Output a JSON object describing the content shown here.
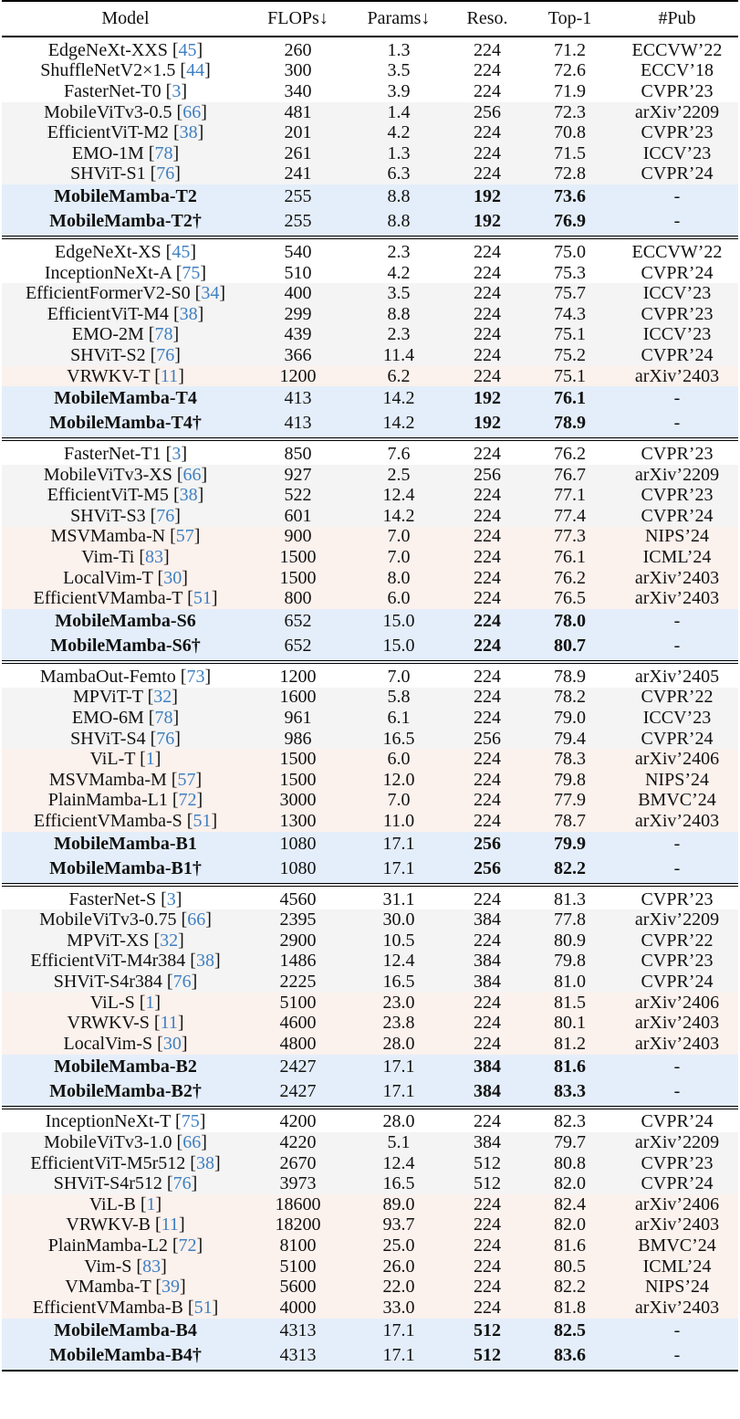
{
  "colors": {
    "cnn": "#ffffff",
    "vit": "#f4f4f4",
    "ssm": "#fbf1ed",
    "mobilemamba": "#e4eefa",
    "citation": "#3f7fc1"
  },
  "headers": [
    "Model",
    "FLOPs↓",
    "Params↓",
    "Reso.",
    "Top-1",
    "#Pub"
  ],
  "groups": [
    [
      [
        "cnn",
        "EdgeNeXt-XXS",
        "45",
        "260",
        "1.3",
        "224",
        "71.2",
        "ECCVW’22"
      ],
      [
        "cnn",
        "ShuffleNetV2×1.5",
        "44",
        "300",
        "3.5",
        "224",
        "72.6",
        "ECCV’18"
      ],
      [
        "cnn",
        "FasterNet-T0",
        "3",
        "340",
        "3.9",
        "224",
        "71.9",
        "CVPR’23"
      ],
      [
        "vit",
        "MobileViTv3-0.5",
        "66",
        "481",
        "1.4",
        "256",
        "72.3",
        "arXiv’2209"
      ],
      [
        "vit",
        "EfficientViT-M2",
        "38",
        "201",
        "4.2",
        "224",
        "70.8",
        "CVPR’23"
      ],
      [
        "vit",
        "EMO-1M",
        "78",
        "261",
        "1.3",
        "224",
        "71.5",
        "ICCV’23"
      ],
      [
        "vit",
        "SHViT-S1",
        "76",
        "241",
        "6.3",
        "224",
        "72.8",
        "CVPR’24"
      ],
      [
        "mm",
        "MobileMamba-T2",
        "",
        "255",
        "8.8",
        "192",
        "73.6",
        "-"
      ],
      [
        "mm",
        "MobileMamba-T2†",
        "",
        "255",
        "8.8",
        "192",
        "76.9",
        "-"
      ]
    ],
    [
      [
        "cnn",
        "EdgeNeXt-XS",
        "45",
        "540",
        "2.3",
        "224",
        "75.0",
        "ECCVW’22"
      ],
      [
        "cnn",
        "InceptionNeXt-A",
        "75",
        "510",
        "4.2",
        "224",
        "75.3",
        "CVPR’24"
      ],
      [
        "vit",
        "EfficientFormerV2-S0",
        "34",
        "400",
        "3.5",
        "224",
        "75.7",
        "ICCV’23"
      ],
      [
        "vit",
        "EfficientViT-M4",
        "38",
        "299",
        "8.8",
        "224",
        "74.3",
        "CVPR’23"
      ],
      [
        "vit",
        "EMO-2M",
        "78",
        "439",
        "2.3",
        "224",
        "75.1",
        "ICCV’23"
      ],
      [
        "vit",
        "SHViT-S2",
        "76",
        "366",
        "11.4",
        "224",
        "75.2",
        "CVPR’24"
      ],
      [
        "ssm",
        "VRWKV-T",
        "11",
        "1200",
        "6.2",
        "224",
        "75.1",
        "arXiv’2403"
      ],
      [
        "mm",
        "MobileMamba-T4",
        "",
        "413",
        "14.2",
        "192",
        "76.1",
        "-"
      ],
      [
        "mm",
        "MobileMamba-T4†",
        "",
        "413",
        "14.2",
        "192",
        "78.9",
        "-"
      ]
    ],
    [
      [
        "cnn",
        "FasterNet-T1",
        "3",
        "850",
        "7.6",
        "224",
        "76.2",
        "CVPR’23"
      ],
      [
        "vit",
        "MobileViTv3-XS",
        "66",
        "927",
        "2.5",
        "256",
        "76.7",
        "arXiv’2209"
      ],
      [
        "vit",
        "EfficientViT-M5",
        "38",
        "522",
        "12.4",
        "224",
        "77.1",
        "CVPR’23"
      ],
      [
        "vit",
        "SHViT-S3",
        "76",
        "601",
        "14.2",
        "224",
        "77.4",
        "CVPR’24"
      ],
      [
        "ssm",
        "MSVMamba-N",
        "57",
        "900",
        "7.0",
        "224",
        "77.3",
        "NIPS’24"
      ],
      [
        "ssm",
        "Vim-Ti",
        "83",
        "1500",
        "7.0",
        "224",
        "76.1",
        "ICML’24"
      ],
      [
        "ssm",
        "LocalVim-T",
        "30",
        "1500",
        "8.0",
        "224",
        "76.2",
        "arXiv’2403"
      ],
      [
        "ssm",
        "EfficientVMamba-T",
        "51",
        "800",
        "6.0",
        "224",
        "76.5",
        "arXiv’2403"
      ],
      [
        "mm",
        "MobileMamba-S6",
        "",
        "652",
        "15.0",
        "224",
        "78.0",
        "-"
      ],
      [
        "mm",
        "MobileMamba-S6†",
        "",
        "652",
        "15.0",
        "224",
        "80.7",
        "-"
      ]
    ],
    [
      [
        "cnn",
        "MambaOut-Femto",
        "73",
        "1200",
        "7.0",
        "224",
        "78.9",
        "arXiv’2405"
      ],
      [
        "vit",
        "MPViT-T",
        "32",
        "1600",
        "5.8",
        "224",
        "78.2",
        "CVPR’22"
      ],
      [
        "vit",
        "EMO-6M",
        "78",
        "961",
        "6.1",
        "224",
        "79.0",
        "ICCV’23"
      ],
      [
        "vit",
        "SHViT-S4",
        "76",
        "986",
        "16.5",
        "256",
        "79.4",
        "CVPR’24"
      ],
      [
        "ssm",
        "ViL-T",
        "1",
        "1500",
        "6.0",
        "224",
        "78.3",
        "arXiv’2406"
      ],
      [
        "ssm",
        "MSVMamba-M",
        "57",
        "1500",
        "12.0",
        "224",
        "79.8",
        "NIPS’24"
      ],
      [
        "ssm",
        "PlainMamba-L1",
        "72",
        "3000",
        "7.0",
        "224",
        "77.9",
        "BMVC’24"
      ],
      [
        "ssm",
        "EfficientVMamba-S",
        "51",
        "1300",
        "11.0",
        "224",
        "78.7",
        "arXiv’2403"
      ],
      [
        "mm",
        "MobileMamba-B1",
        "",
        "1080",
        "17.1",
        "256",
        "79.9",
        "-"
      ],
      [
        "mm",
        "MobileMamba-B1†",
        "",
        "1080",
        "17.1",
        "256",
        "82.2",
        "-"
      ]
    ],
    [
      [
        "cnn",
        "FasterNet-S",
        "3",
        "4560",
        "31.1",
        "224",
        "81.3",
        "CVPR’23"
      ],
      [
        "vit",
        "MobileViTv3-0.75",
        "66",
        "2395",
        "30.0",
        "384",
        "77.8",
        "arXiv’2209"
      ],
      [
        "vit",
        "MPViT-XS",
        "32",
        "2900",
        "10.5",
        "224",
        "80.9",
        "CVPR’22"
      ],
      [
        "vit",
        "EfficientViT-M4r384",
        "38",
        "1486",
        "12.4",
        "384",
        "79.8",
        "CVPR’23"
      ],
      [
        "vit",
        "SHViT-S4r384",
        "76",
        "2225",
        "16.5",
        "384",
        "81.0",
        "CVPR’24"
      ],
      [
        "ssm",
        "ViL-S",
        "1",
        "5100",
        "23.0",
        "224",
        "81.5",
        "arXiv’2406"
      ],
      [
        "ssm",
        "VRWKV-S",
        "11",
        "4600",
        "23.8",
        "224",
        "80.1",
        "arXiv’2403"
      ],
      [
        "ssm",
        "LocalVim-S",
        "30",
        "4800",
        "28.0",
        "224",
        "81.2",
        "arXiv’2403"
      ],
      [
        "mm",
        "MobileMamba-B2",
        "",
        "2427",
        "17.1",
        "384",
        "81.6",
        "-"
      ],
      [
        "mm",
        "MobileMamba-B2†",
        "",
        "2427",
        "17.1",
        "384",
        "83.3",
        "-"
      ]
    ],
    [
      [
        "cnn",
        "InceptionNeXt-T",
        "75",
        "4200",
        "28.0",
        "224",
        "82.3",
        "CVPR’24"
      ],
      [
        "vit",
        "MobileViTv3-1.0",
        "66",
        "4220",
        "5.1",
        "384",
        "79.7",
        "arXiv’2209"
      ],
      [
        "vit",
        "EfficientViT-M5r512",
        "38",
        "2670",
        "12.4",
        "512",
        "80.8",
        "CVPR’23"
      ],
      [
        "vit",
        "SHViT-S4r512",
        "76",
        "3973",
        "16.5",
        "512",
        "82.0",
        "CVPR’24"
      ],
      [
        "ssm",
        "ViL-B",
        "1",
        "18600",
        "89.0",
        "224",
        "82.4",
        "arXiv’2406"
      ],
      [
        "ssm",
        "VRWKV-B",
        "11",
        "18200",
        "93.7",
        "224",
        "82.0",
        "arXiv’2403"
      ],
      [
        "ssm",
        "PlainMamba-L2",
        "72",
        "8100",
        "25.0",
        "224",
        "81.6",
        "BMVC’24"
      ],
      [
        "ssm",
        "Vim-S",
        "83",
        "5100",
        "26.0",
        "224",
        "80.5",
        "ICML’24"
      ],
      [
        "ssm",
        "VMamba-T",
        "39",
        "5600",
        "22.0",
        "224",
        "82.2",
        "NIPS’24"
      ],
      [
        "ssm",
        "EfficientVMamba-B",
        "51",
        "4000",
        "33.0",
        "224",
        "81.8",
        "arXiv’2403"
      ],
      [
        "mm",
        "MobileMamba-B4",
        "",
        "4313",
        "17.1",
        "512",
        "82.5",
        "-"
      ],
      [
        "mm",
        "MobileMamba-B4†",
        "",
        "4313",
        "17.1",
        "512",
        "83.6",
        "-"
      ]
    ]
  ]
}
